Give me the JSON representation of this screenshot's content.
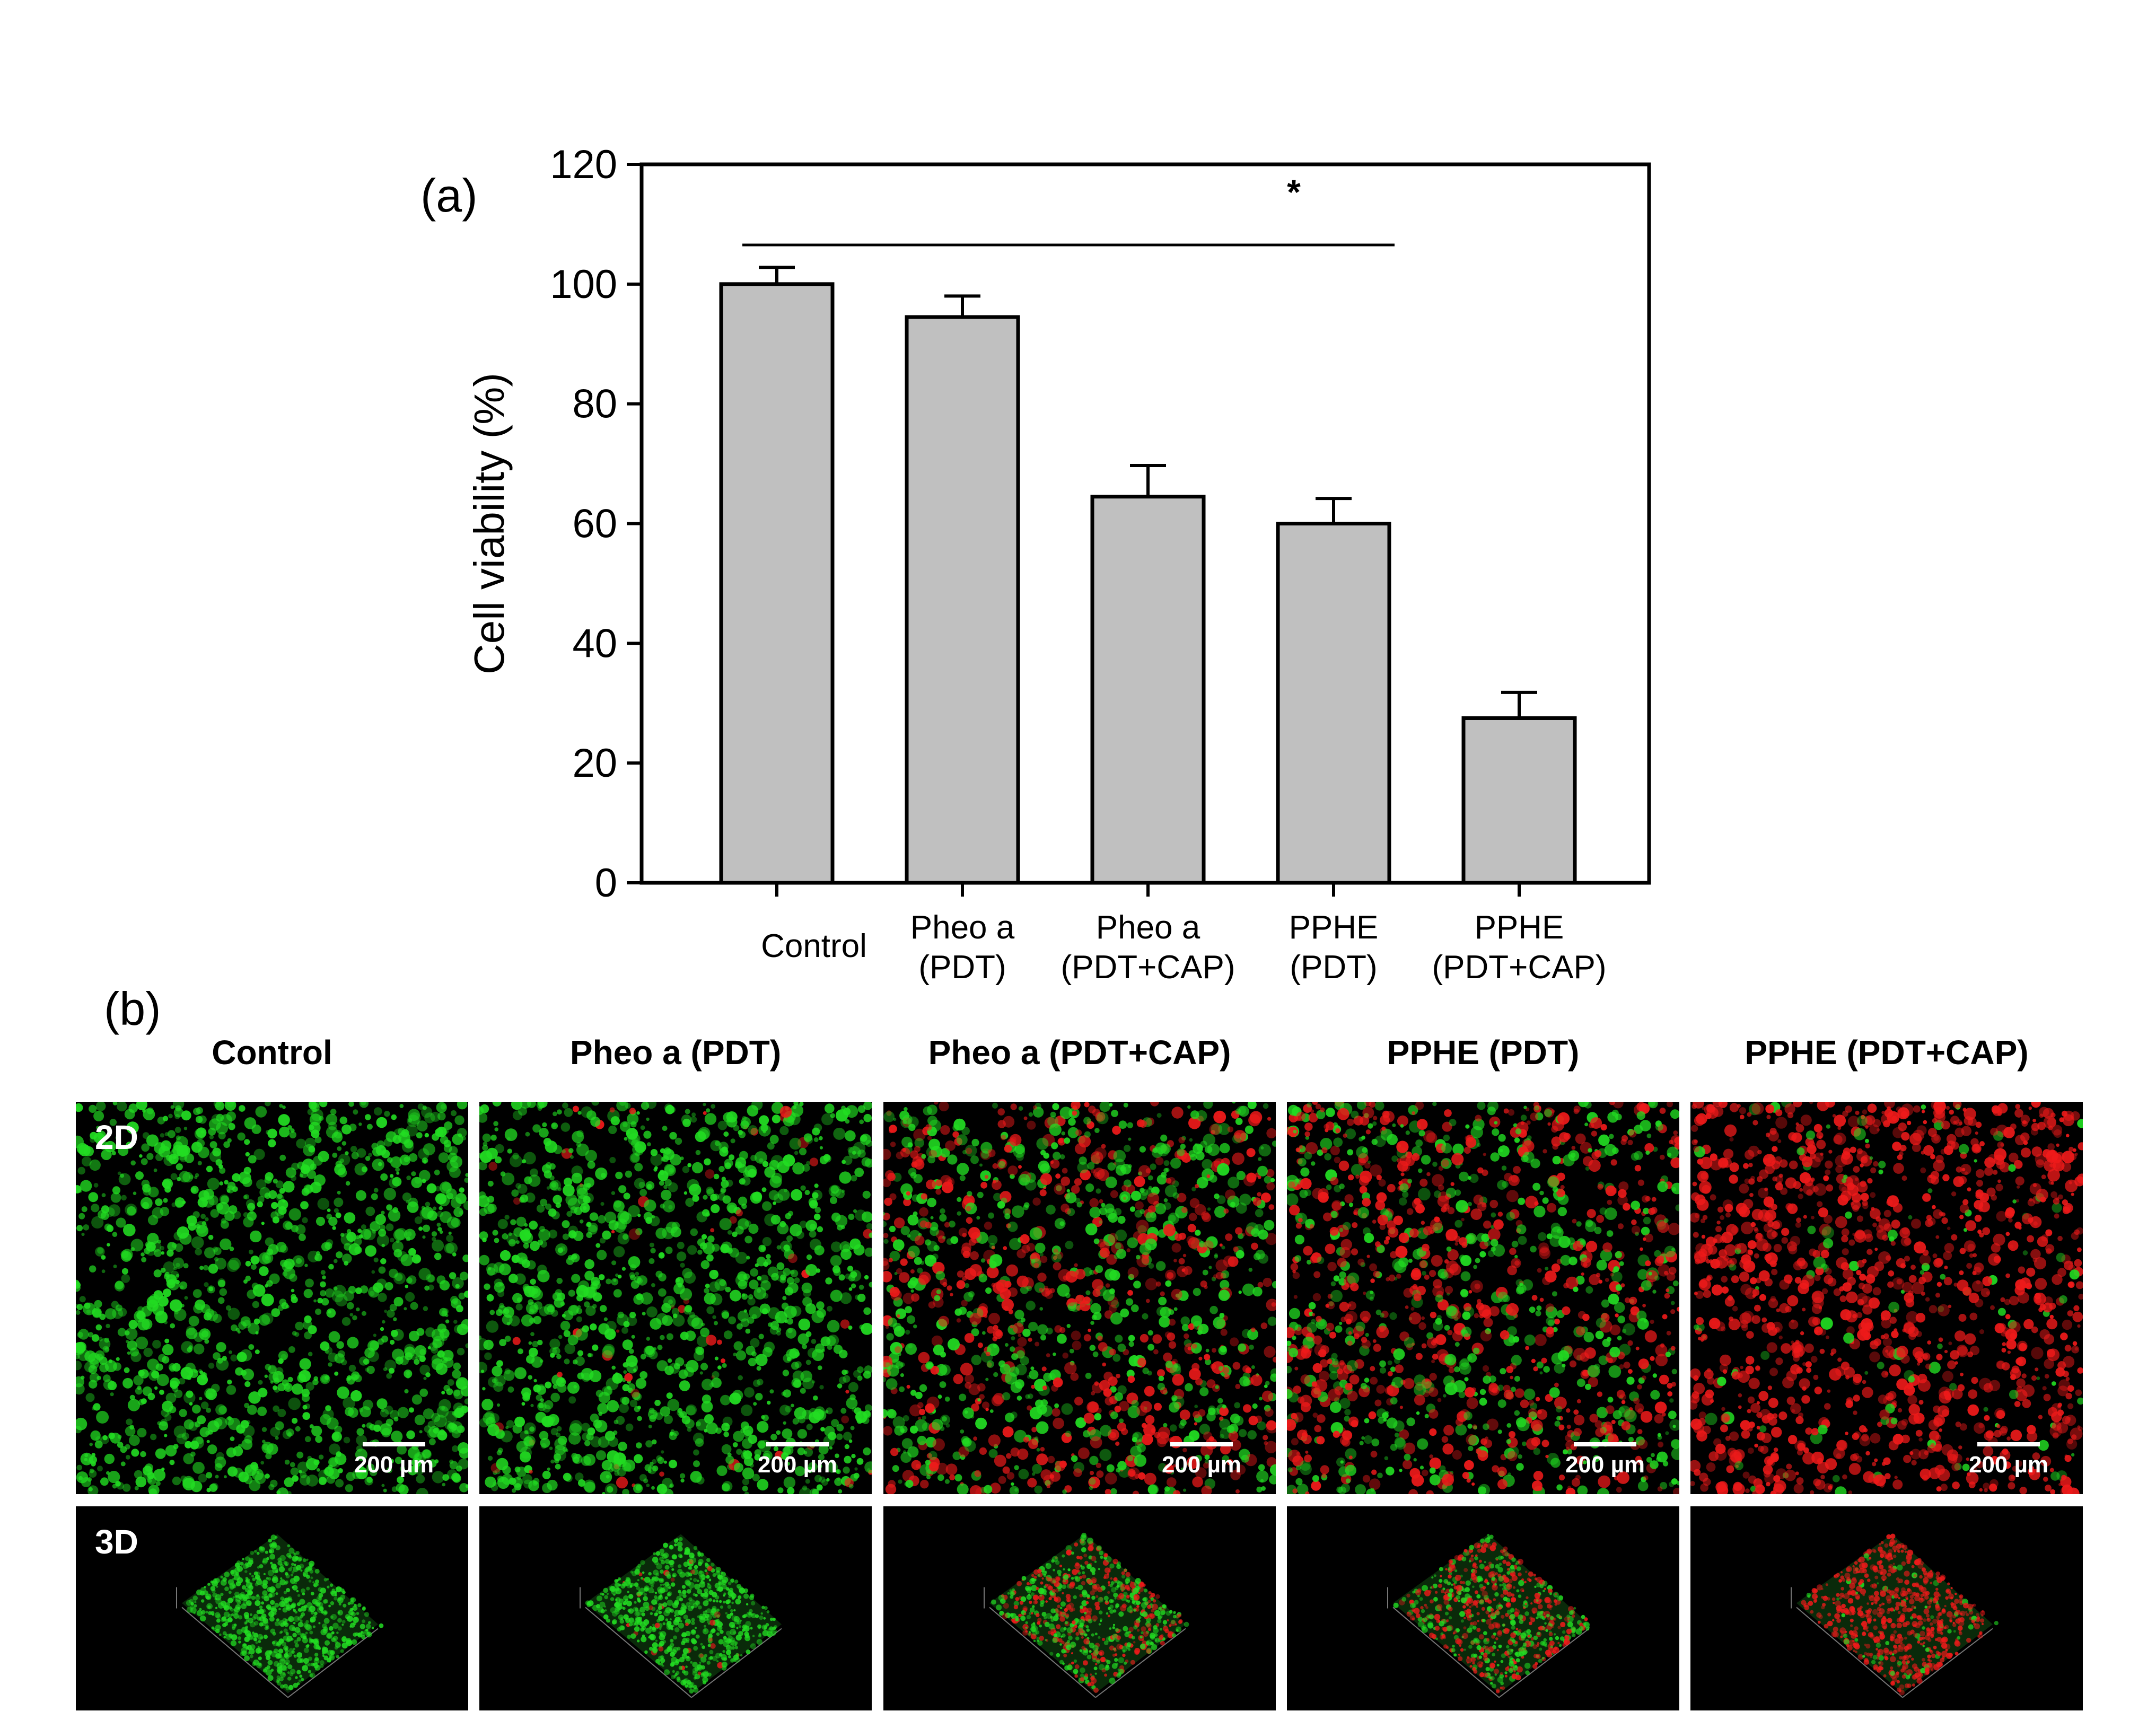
{
  "panel_a_label": "(a)",
  "panel_b_label": "(b)",
  "chart_data": {
    "type": "bar",
    "title": "",
    "ylabel": "Cell viability (%)",
    "xlabel": "",
    "ylim": [
      0,
      120
    ],
    "yticks": [
      0,
      20,
      40,
      60,
      80,
      100,
      120
    ],
    "categories": [
      [
        "Control"
      ],
      [
        "Pheo a",
        "(PDT)"
      ],
      [
        "Pheo a",
        "(PDT+CAP)"
      ],
      [
        "PPHE",
        "(PDT)"
      ],
      [
        "PPHE",
        "(PDT+CAP)"
      ]
    ],
    "values": [
      100,
      94.5,
      64.5,
      60,
      27.5
    ],
    "errors": [
      2.8,
      3.5,
      5.2,
      4.2,
      4.3
    ],
    "bar_color": "#c0c0c0",
    "significance": {
      "symbol": "*",
      "group": [
        0,
        3
      ],
      "compared_to": 4
    }
  },
  "panel_b": {
    "columns": [
      "Control",
      "Pheo a (PDT)",
      "Pheo a (PDT+CAP)",
      "PPHE (PDT)",
      "PPHE (PDT+CAP)"
    ],
    "row_labels": [
      "2D",
      "3D"
    ],
    "scale_bar": "200 µm",
    "red_fraction": [
      0.0,
      0.03,
      0.45,
      0.55,
      0.92
    ],
    "green_color": "#22dd22",
    "red_color": "#ee1a1a"
  }
}
